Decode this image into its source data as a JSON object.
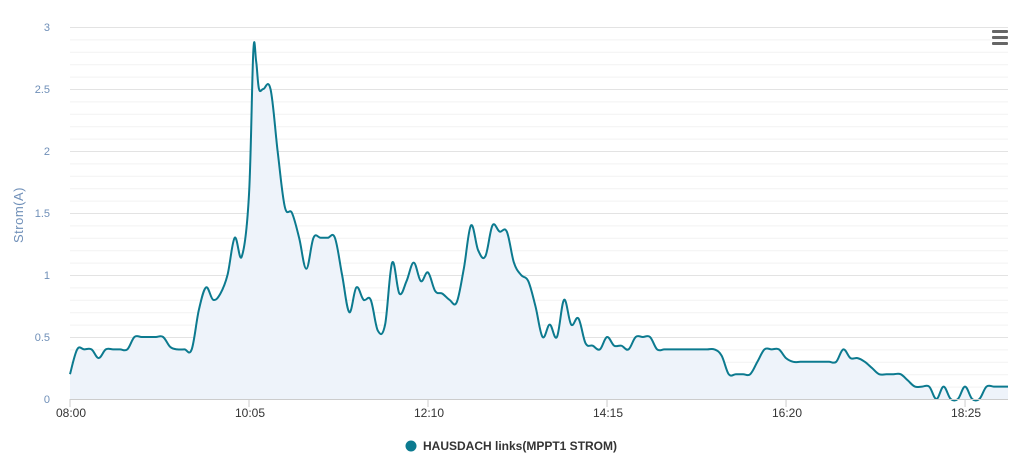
{
  "chart_data": {
    "type": "area",
    "title": "",
    "xlabel": "",
    "ylabel": "Strom(A)",
    "ylim": [
      0,
      3
    ],
    "yticks": [
      "0",
      "0.5",
      "1",
      "1.5",
      "2",
      "2.5",
      "3"
    ],
    "xticks": [
      "08:00",
      "10:05",
      "12:10",
      "14:15",
      "16:20",
      "18:25"
    ],
    "xlim": [
      "08:00",
      "18:55"
    ],
    "grid": true,
    "legend_position": "bottom",
    "series": [
      {
        "name": "HAUSDACH links(MPPT1 STROM)",
        "color": "#0c7a8f",
        "fill": "#eef3fa",
        "x": [
          "08:00",
          "08:05",
          "08:10",
          "08:15",
          "08:20",
          "08:25",
          "08:30",
          "08:35",
          "08:40",
          "08:45",
          "08:50",
          "08:55",
          "09:00",
          "09:05",
          "09:10",
          "09:15",
          "09:20",
          "09:25",
          "09:30",
          "09:35",
          "09:40",
          "09:45",
          "09:50",
          "09:55",
          "10:00",
          "10:05",
          "10:08",
          "10:10",
          "10:12",
          "10:15",
          "10:20",
          "10:25",
          "10:30",
          "10:35",
          "10:40",
          "10:45",
          "10:50",
          "10:55",
          "11:00",
          "11:05",
          "11:10",
          "11:15",
          "11:20",
          "11:25",
          "11:30",
          "11:35",
          "11:40",
          "11:45",
          "11:50",
          "11:55",
          "12:00",
          "12:05",
          "12:10",
          "12:15",
          "12:20",
          "12:25",
          "12:30",
          "12:35",
          "12:40",
          "12:45",
          "12:50",
          "12:55",
          "13:00",
          "13:05",
          "13:10",
          "13:15",
          "13:20",
          "13:25",
          "13:30",
          "13:35",
          "13:40",
          "13:45",
          "13:50",
          "13:55",
          "14:00",
          "14:05",
          "14:10",
          "14:15",
          "14:20",
          "14:25",
          "14:30",
          "14:35",
          "14:40",
          "14:45",
          "14:50",
          "14:55",
          "15:00",
          "15:05",
          "15:10",
          "15:15",
          "15:20",
          "15:25",
          "15:30",
          "15:35",
          "15:40",
          "15:45",
          "15:50",
          "15:55",
          "16:00",
          "16:05",
          "16:10",
          "16:15",
          "16:20",
          "16:25",
          "16:30",
          "16:35",
          "16:40",
          "16:45",
          "16:50",
          "16:55",
          "17:00",
          "17:05",
          "17:10",
          "17:15",
          "17:20",
          "17:25",
          "17:30",
          "17:35",
          "17:40",
          "17:45",
          "17:50",
          "17:55",
          "18:00",
          "18:05",
          "18:10",
          "18:15",
          "18:20",
          "18:25",
          "18:30",
          "18:35",
          "18:40",
          "18:45",
          "18:50",
          "18:55"
        ],
        "values": [
          0.2,
          0.4,
          0.4,
          0.4,
          0.33,
          0.4,
          0.4,
          0.4,
          0.4,
          0.5,
          0.5,
          0.5,
          0.5,
          0.5,
          0.42,
          0.4,
          0.4,
          0.4,
          0.72,
          0.9,
          0.8,
          0.85,
          1.0,
          1.3,
          1.15,
          1.65,
          2.8,
          2.72,
          2.5,
          2.5,
          2.5,
          2.0,
          1.55,
          1.5,
          1.3,
          1.05,
          1.3,
          1.3,
          1.3,
          1.3,
          1.0,
          0.7,
          0.9,
          0.8,
          0.8,
          0.55,
          0.6,
          1.1,
          0.85,
          0.95,
          1.1,
          0.95,
          1.02,
          0.87,
          0.85,
          0.8,
          0.78,
          1.05,
          1.4,
          1.2,
          1.15,
          1.4,
          1.35,
          1.35,
          1.1,
          1.0,
          0.95,
          0.75,
          0.5,
          0.6,
          0.5,
          0.8,
          0.6,
          0.65,
          0.45,
          0.43,
          0.4,
          0.5,
          0.43,
          0.43,
          0.4,
          0.5,
          0.5,
          0.5,
          0.4,
          0.4,
          0.4,
          0.4,
          0.4,
          0.4,
          0.4,
          0.4,
          0.4,
          0.35,
          0.2,
          0.2,
          0.2,
          0.2,
          0.3,
          0.4,
          0.4,
          0.4,
          0.33,
          0.3,
          0.3,
          0.3,
          0.3,
          0.3,
          0.3,
          0.3,
          0.4,
          0.33,
          0.33,
          0.3,
          0.25,
          0.2,
          0.2,
          0.2,
          0.2,
          0.15,
          0.1,
          0.1,
          0.1,
          0.0,
          0.1,
          0.0,
          0.0,
          0.1,
          0.0,
          0.0,
          0.1,
          0.1,
          0.1,
          0.1
        ]
      }
    ]
  },
  "menu": {
    "icon": "hamburger-menu-icon"
  }
}
